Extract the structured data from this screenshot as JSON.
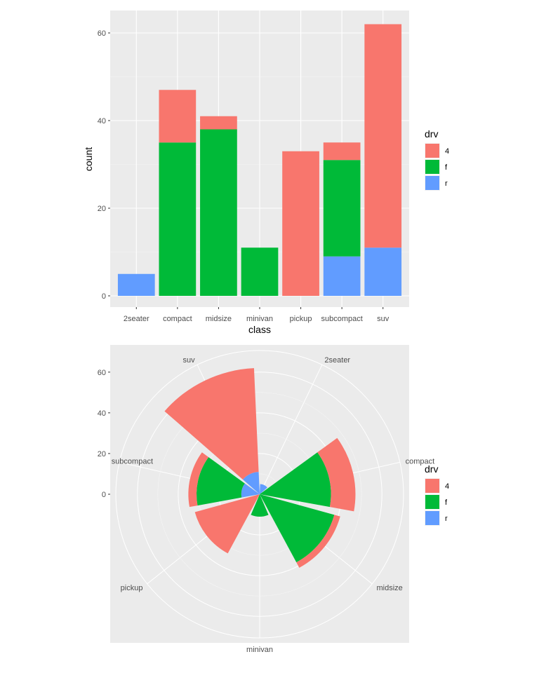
{
  "chart_data": [
    {
      "type": "bar",
      "stacked": true,
      "categories": [
        "2seater",
        "compact",
        "midsize",
        "minivan",
        "pickup",
        "subcompact",
        "suv"
      ],
      "series": [
        {
          "name": "4",
          "values": [
            0,
            12,
            3,
            0,
            33,
            4,
            51
          ]
        },
        {
          "name": "f",
          "values": [
            0,
            35,
            38,
            11,
            0,
            22,
            0
          ]
        },
        {
          "name": "r",
          "values": [
            5,
            0,
            0,
            0,
            0,
            9,
            11
          ]
        }
      ],
      "xlabel": "class",
      "ylabel": "count",
      "yticks": [
        "0",
        "20",
        "40",
        "60"
      ],
      "ylim": [
        0,
        62
      ],
      "grid": true,
      "legend": {
        "title": "drv",
        "entries": [
          "4",
          "f",
          "r"
        ],
        "position": "right"
      },
      "colors": {
        "4": "#F8766D",
        "f": "#00BA38",
        "r": "#619CFF"
      }
    },
    {
      "type": "bar",
      "coord": "polar",
      "stacked": true,
      "categories": [
        "2seater",
        "compact",
        "midsize",
        "minivan",
        "pickup",
        "subcompact",
        "suv"
      ],
      "series": [
        {
          "name": "4",
          "values": [
            0,
            12,
            3,
            0,
            33,
            4,
            51
          ]
        },
        {
          "name": "f",
          "values": [
            0,
            35,
            38,
            11,
            0,
            22,
            0
          ]
        },
        {
          "name": "r",
          "values": [
            5,
            0,
            0,
            0,
            0,
            9,
            11
          ]
        }
      ],
      "rticks": [
        "0",
        "20",
        "40",
        "60"
      ],
      "grid": true,
      "legend": {
        "title": "drv",
        "entries": [
          "4",
          "f",
          "r"
        ],
        "position": "right"
      },
      "colors": {
        "4": "#F8766D",
        "f": "#00BA38",
        "r": "#619CFF"
      }
    }
  ]
}
